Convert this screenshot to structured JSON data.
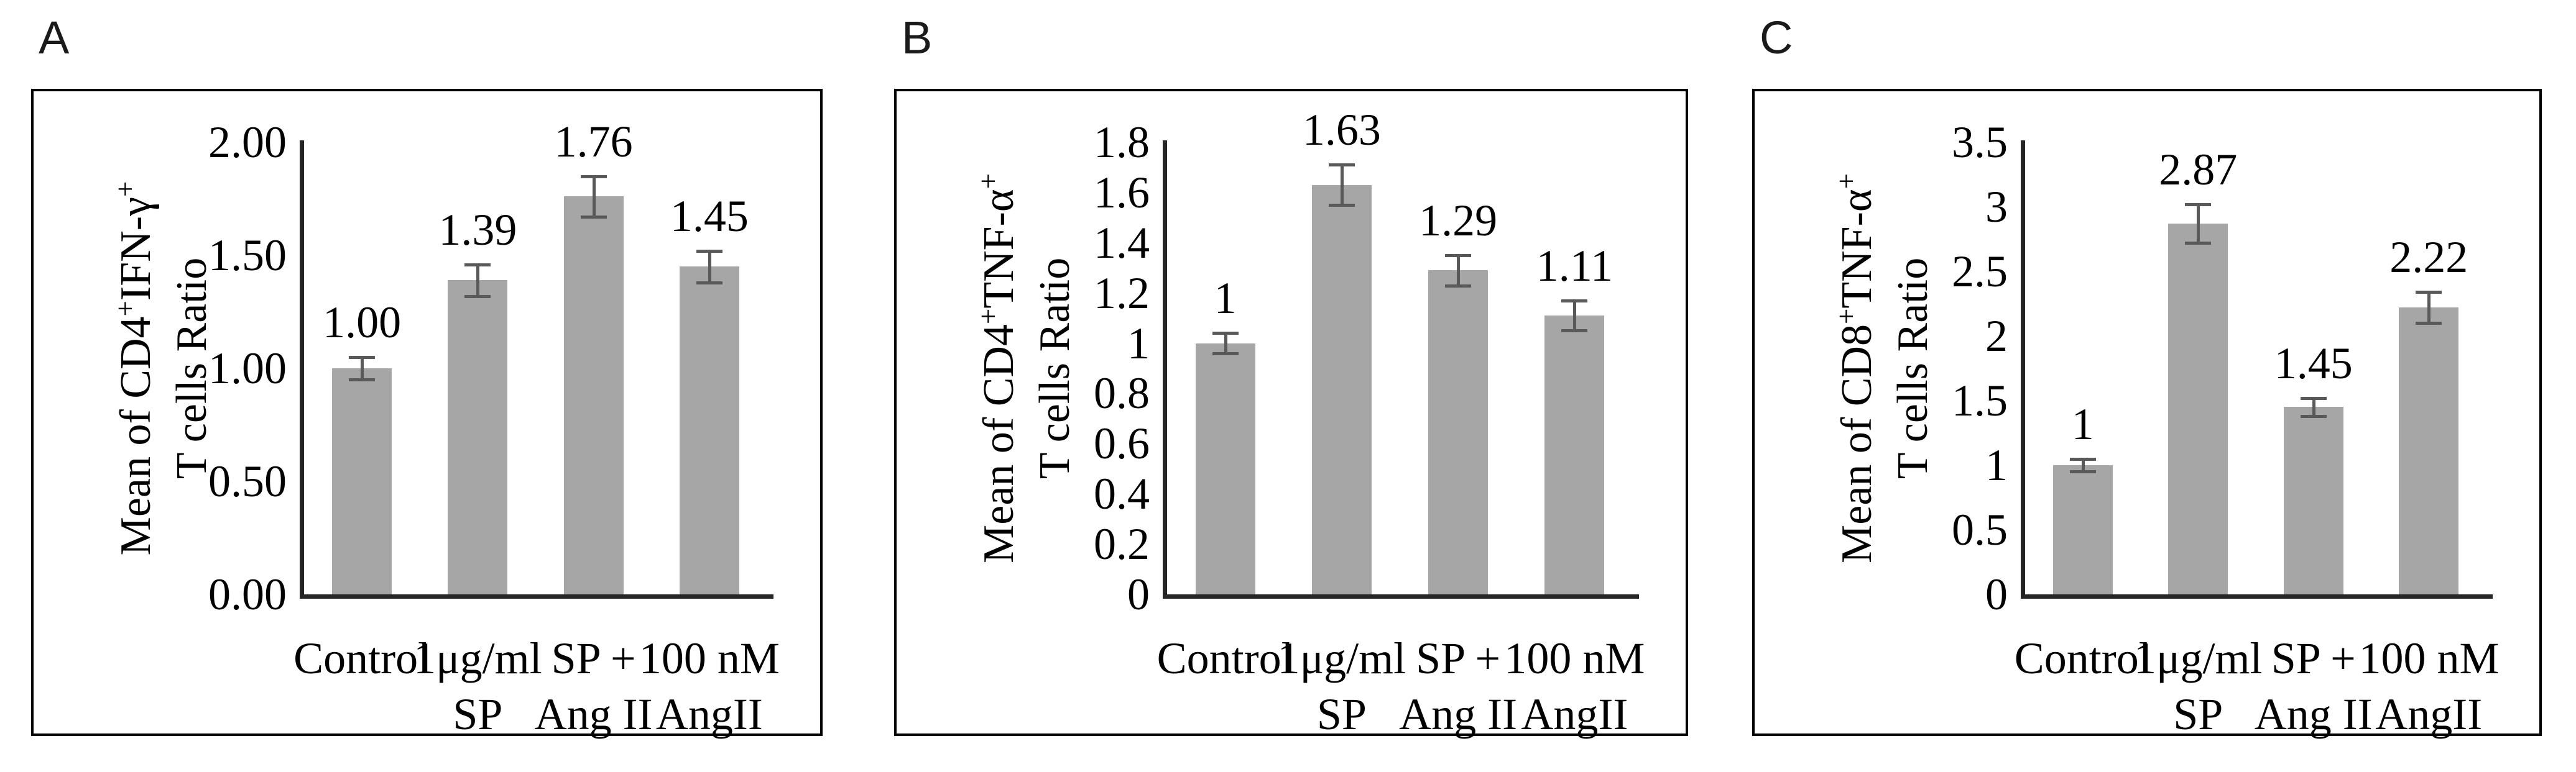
{
  "colors": {
    "bar_fill": "#a6a6a6",
    "error_bar": "#595959",
    "axis_line": "#262626",
    "panel_border": "#000000",
    "text": "#000000",
    "background": "#ffffff"
  },
  "chart_data": [
    {
      "panel_letter": "A",
      "type": "bar",
      "title": "",
      "ylabel": "Mean of CD4^+IFN-γ^+\nT cells Ratio",
      "xlabel": "",
      "categories": [
        "Control",
        "1μg/ml SP",
        "SP + Ang II",
        "100 nM AngII"
      ],
      "category_lines": [
        [
          "Control"
        ],
        [
          "1μg/ml",
          "SP"
        ],
        [
          "SP +",
          "Ang II"
        ],
        [
          "100 nM",
          "AngII"
        ]
      ],
      "values": [
        1.0,
        1.39,
        1.76,
        1.45
      ],
      "value_labels": [
        "1.00",
        "1.39",
        "1.76",
        "1.45"
      ],
      "errors": [
        0.05,
        0.07,
        0.09,
        0.07
      ],
      "ylim": [
        0,
        2.0
      ],
      "ytick_labels": [
        "2.00",
        "1.50",
        "1.00",
        "0.50",
        "0.00"
      ],
      "grid": false,
      "legend": null
    },
    {
      "panel_letter": "B",
      "type": "bar",
      "title": "",
      "ylabel": "Mean of CD4^+TNF-α^+\nT cells Ratio",
      "xlabel": "",
      "categories": [
        "Control",
        "1μg/ml SP",
        "SP + Ang II",
        "100 nM AngII"
      ],
      "category_lines": [
        [
          "Control"
        ],
        [
          "1μg/ml",
          "SP"
        ],
        [
          "SP +",
          "Ang II"
        ],
        [
          "100 nM",
          "AngII"
        ]
      ],
      "values": [
        1.0,
        1.63,
        1.29,
        1.11
      ],
      "value_labels": [
        "1",
        "1.63",
        "1.29",
        "1.11"
      ],
      "errors": [
        0.04,
        0.08,
        0.06,
        0.06
      ],
      "ylim": [
        0,
        1.8
      ],
      "ytick_labels": [
        "1.8",
        "1.6",
        "1.4",
        "1.2",
        "1",
        "0.8",
        "0.6",
        "0.4",
        "0.2",
        "0"
      ],
      "grid": false,
      "legend": null
    },
    {
      "panel_letter": "C",
      "type": "bar",
      "title": "",
      "ylabel": "Mean of CD8^+TNF-α^+\nT cells Ratio",
      "xlabel": "",
      "categories": [
        "Control",
        "1μg/ml SP",
        "SP + Ang II",
        "100 nM AngII"
      ],
      "category_lines": [
        [
          "Control"
        ],
        [
          "1μg/ml",
          "SP"
        ],
        [
          "SP +",
          "Ang II"
        ],
        [
          "100 nM",
          "AngII"
        ]
      ],
      "values": [
        1.0,
        2.87,
        1.45,
        2.22
      ],
      "value_labels": [
        "1",
        "2.87",
        "1.45",
        "2.22"
      ],
      "errors": [
        0.05,
        0.15,
        0.07,
        0.12
      ],
      "ylim": [
        0,
        3.5
      ],
      "ytick_labels": [
        "3.5",
        "3",
        "2.5",
        "2",
        "1.5",
        "1",
        "0.5",
        "0"
      ],
      "grid": false,
      "legend": null
    }
  ]
}
